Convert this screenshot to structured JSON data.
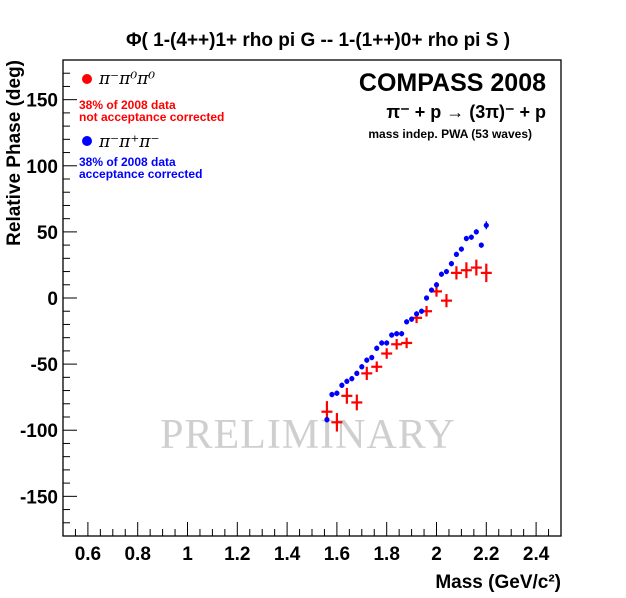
{
  "chart_data": {
    "type": "scatter",
    "title": "Φ( 1-(4++)1+ rho pi G  --  1-(1++)0+ rho pi S )",
    "xlabel": "Mass (GeV/c²)",
    "ylabel": "Relative Phase (deg)",
    "xlim": [
      0.5,
      2.5
    ],
    "ylim": [
      -180,
      180
    ],
    "xticks": [
      "0.6",
      "0.8",
      "1",
      "1.2",
      "1.4",
      "1.6",
      "1.8",
      "2",
      "2.2",
      "2.4"
    ],
    "yticks": [
      "150",
      "100",
      "50",
      "0",
      "-50",
      "-100",
      "-150"
    ],
    "grid": false,
    "legend_position": "top-left",
    "experiment": "COMPASS 2008",
    "reaction": "π⁻ + p → (3π)⁻ + p",
    "analysis": "mass indep. PWA (53 waves)",
    "watermark": "PRELIMINARY",
    "series": [
      {
        "name": "π⁻π⁰π⁰",
        "note_line1": "38% of 2008 data",
        "note_line2": "not acceptance corrected",
        "color": "#ff0000",
        "style": "crosses",
        "x": [
          1.56,
          1.6,
          1.64,
          1.68,
          1.72,
          1.76,
          1.8,
          1.84,
          1.88,
          1.92,
          1.96,
          2.0,
          2.04,
          2.08,
          2.12,
          2.16,
          2.2
        ],
        "y": [
          -86,
          -94,
          -74,
          -79,
          -57,
          -52,
          -42,
          -35,
          -34,
          -15,
          -10,
          5,
          -2,
          19,
          21,
          23,
          19
        ],
        "err": [
          8,
          7,
          6,
          6,
          5,
          4,
          4,
          4,
          4,
          4,
          4,
          4,
          5,
          5,
          6,
          6,
          7
        ]
      },
      {
        "name": "π⁻π⁺π⁻",
        "note_line1": "38% of 2008 data",
        "note_line2": "acceptance corrected",
        "color": "#0000ff",
        "style": "dots",
        "x": [
          1.56,
          1.58,
          1.6,
          1.62,
          1.64,
          1.66,
          1.68,
          1.7,
          1.72,
          1.74,
          1.76,
          1.78,
          1.8,
          1.82,
          1.84,
          1.86,
          1.88,
          1.9,
          1.92,
          1.94,
          1.96,
          1.98,
          2.0,
          2.02,
          2.04,
          2.06,
          2.08,
          2.1,
          2.12,
          2.14,
          2.16,
          2.18,
          2.2
        ],
        "y": [
          -92,
          -73,
          -72,
          -66,
          -63,
          -61,
          -57,
          -52,
          -47,
          -45,
          -38,
          -34,
          -34,
          -28,
          -27,
          -27,
          -18,
          -16,
          -12,
          -10,
          0,
          6,
          10,
          18,
          20,
          26,
          33,
          37,
          45,
          46,
          50,
          40,
          55
        ],
        "err": [
          2,
          2,
          2,
          2,
          2,
          2,
          2,
          2,
          2,
          2,
          2,
          2,
          2,
          2,
          2,
          2,
          2,
          2,
          2,
          2,
          2,
          2,
          2,
          2,
          2,
          2,
          2,
          2,
          2,
          2,
          2,
          2,
          3
        ]
      }
    ]
  }
}
